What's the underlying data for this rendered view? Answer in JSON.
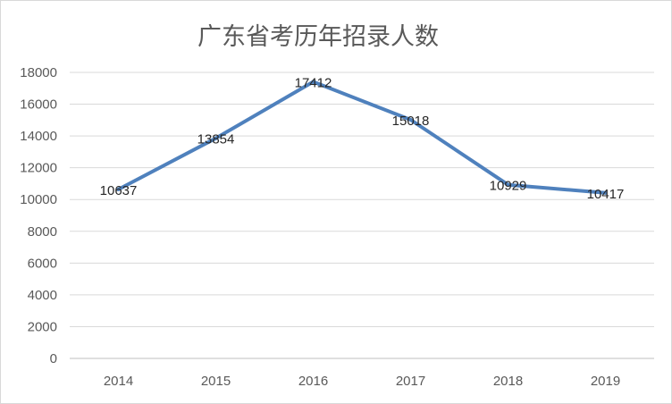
{
  "chart_data": {
    "type": "line",
    "title": "广东省考历年招录人数",
    "categories": [
      "2014",
      "2015",
      "2016",
      "2017",
      "2018",
      "2019"
    ],
    "series": [
      {
        "values": [
          10637,
          13854,
          17412,
          15018,
          10929,
          10417
        ]
      }
    ],
    "data_labels": [
      "10637",
      "13854",
      "17412",
      "15018",
      "10929",
      "10417"
    ],
    "y_ticks": [
      "0",
      "2000",
      "4000",
      "6000",
      "8000",
      "10000",
      "12000",
      "14000",
      "16000",
      "18000"
    ],
    "ylim": [
      0,
      18000
    ],
    "grid": "horizontal",
    "legend": "none",
    "line_color": "#4f81bd",
    "grid_color": "#d9d9d9",
    "axis_color": "#bfbfbf"
  }
}
